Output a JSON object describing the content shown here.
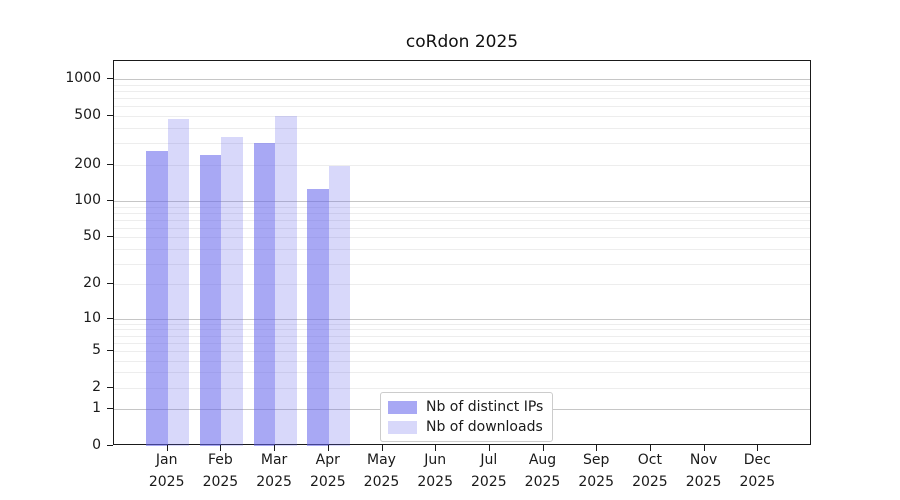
{
  "chart_data": {
    "type": "bar",
    "title": "coRdon 2025",
    "categories": [
      "Jan 2025",
      "Feb 2025",
      "Mar 2025",
      "Apr 2025",
      "May 2025",
      "Jun 2025",
      "Jul 2025",
      "Aug 2025",
      "Sep 2025",
      "Oct 2025",
      "Nov 2025",
      "Dec 2025"
    ],
    "series": [
      {
        "name": "Nb of distinct IPs",
        "color": "rgba(100,100,235,0.56)",
        "solid_hex": "#a8a8f3",
        "values": [
          260,
          240,
          300,
          125,
          null,
          null,
          null,
          null,
          null,
          null,
          null,
          null
        ]
      },
      {
        "name": "Nb of downloads",
        "color": "rgba(100,100,235,0.25)",
        "solid_hex": "#dadafb",
        "values": [
          470,
          340,
          500,
          195,
          null,
          null,
          null,
          null,
          null,
          null,
          null,
          null
        ]
      }
    ],
    "yscale": "log1p",
    "yticks": [
      0,
      1,
      2,
      5,
      10,
      20,
      50,
      100,
      200,
      500,
      1000
    ],
    "ylim": [
      0,
      1413
    ],
    "xlabel": "",
    "ylabel": "",
    "grid": "horizontal",
    "legend_position": "inside-bottom-center"
  },
  "colors": {
    "grid_major": "#c6c6c6",
    "grid_minor": "#ededed",
    "axis": "#1a1a1a",
    "text": "#1a1a1a",
    "background": "#ffffff"
  }
}
